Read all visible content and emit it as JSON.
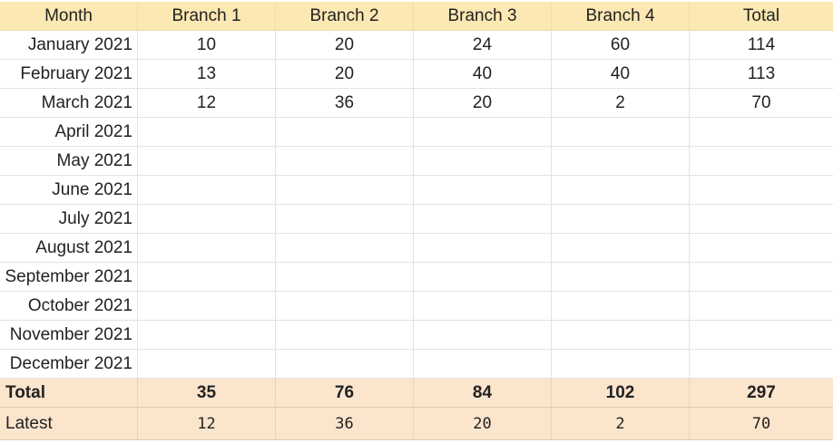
{
  "header": {
    "month": "Month",
    "branch1": "Branch 1",
    "branch2": "Branch 2",
    "branch3": "Branch 3",
    "branch4": "Branch 4",
    "total": "Total"
  },
  "rows": [
    {
      "month": "January 2021",
      "b1": "10",
      "b2": "20",
      "b3": "24",
      "b4": "60",
      "total": "114"
    },
    {
      "month": "February 2021",
      "b1": "13",
      "b2": "20",
      "b3": "40",
      "b4": "40",
      "total": "113"
    },
    {
      "month": "March 2021",
      "b1": "12",
      "b2": "36",
      "b3": "20",
      "b4": "2",
      "total": "70"
    },
    {
      "month": "April 2021",
      "b1": "",
      "b2": "",
      "b3": "",
      "b4": "",
      "total": ""
    },
    {
      "month": "May 2021",
      "b1": "",
      "b2": "",
      "b3": "",
      "b4": "",
      "total": ""
    },
    {
      "month": "June 2021",
      "b1": "",
      "b2": "",
      "b3": "",
      "b4": "",
      "total": ""
    },
    {
      "month": "July 2021",
      "b1": "",
      "b2": "",
      "b3": "",
      "b4": "",
      "total": ""
    },
    {
      "month": "August 2021",
      "b1": "",
      "b2": "",
      "b3": "",
      "b4": "",
      "total": ""
    },
    {
      "month": "September 2021",
      "b1": "",
      "b2": "",
      "b3": "",
      "b4": "",
      "total": ""
    },
    {
      "month": "October 2021",
      "b1": "",
      "b2": "",
      "b3": "",
      "b4": "",
      "total": ""
    },
    {
      "month": "November 2021",
      "b1": "",
      "b2": "",
      "b3": "",
      "b4": "",
      "total": ""
    },
    {
      "month": "December 2021",
      "b1": "",
      "b2": "",
      "b3": "",
      "b4": "",
      "total": ""
    }
  ],
  "totals": {
    "label": "Total",
    "b1": "35",
    "b2": "76",
    "b3": "84",
    "b4": "102",
    "total": "297"
  },
  "latest": {
    "label": "Latest",
    "b1": "12",
    "b2": "36",
    "b3": "20",
    "b4": "2",
    "total": "70"
  },
  "colors": {
    "header_bg": "#fce8b2",
    "summary_bg": "#fce5cd",
    "grid_line": "#e2e2e2"
  }
}
